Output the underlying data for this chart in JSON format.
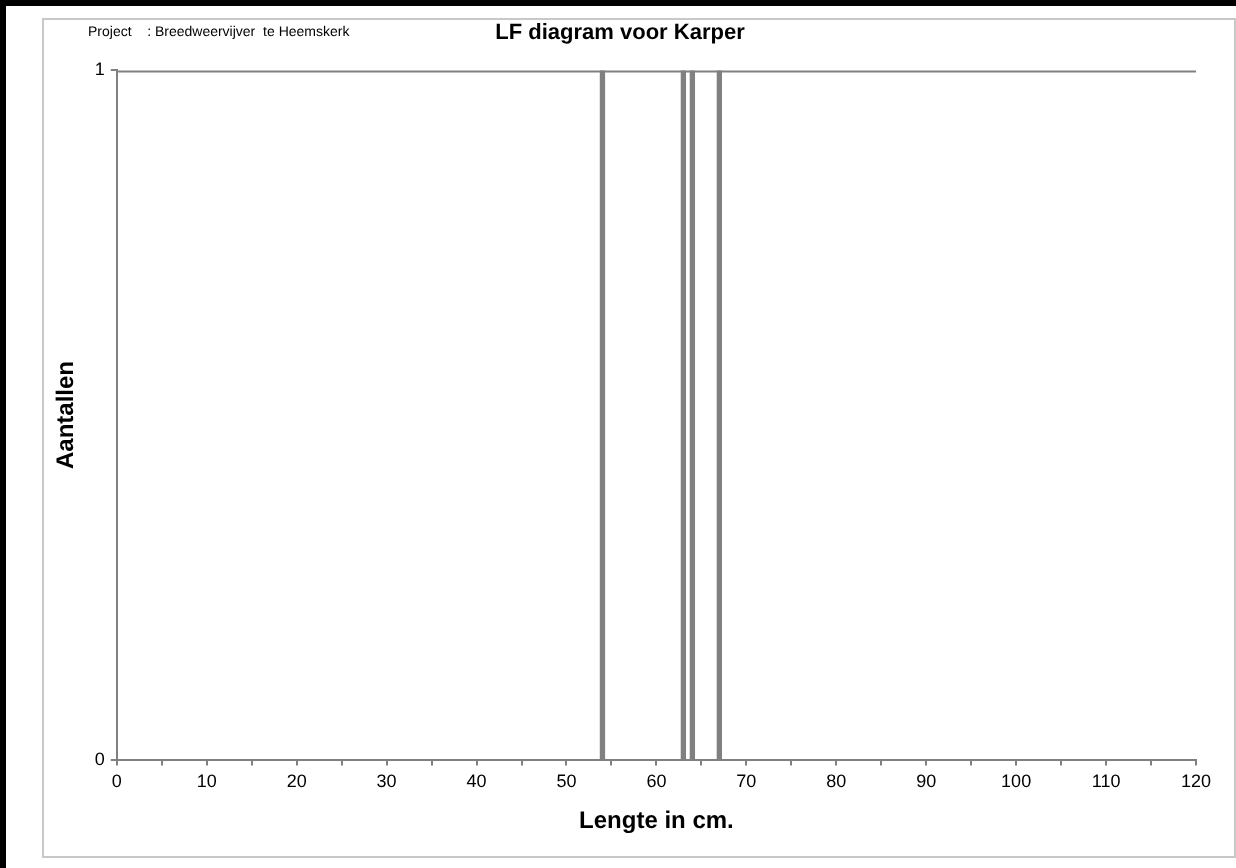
{
  "chart_data": {
    "type": "bar",
    "title": "LF diagram voor Karper",
    "xlabel": "Lengte in cm.",
    "ylabel": "Aantallen",
    "annotations": [
      "Project    : Breedweervijver  te Heemskerk"
    ],
    "x": [
      54,
      63,
      64,
      67
    ],
    "values": [
      1,
      1,
      1,
      1
    ],
    "color": "#808080",
    "xlim": [
      0,
      120
    ],
    "xticks": [
      0,
      {
        "value": 5,
        "label": null
      },
      10,
      {
        "value": 15,
        "label": null
      },
      20,
      {
        "value": 25,
        "label": null
      },
      30,
      {
        "value": 35,
        "label": null
      },
      40,
      {
        "value": 45,
        "label": null
      },
      50,
      {
        "value": 55,
        "label": null
      },
      60,
      {
        "value": 65,
        "label": null
      },
      70,
      {
        "value": 75,
        "label": null
      },
      80,
      {
        "value": 85,
        "label": null
      },
      90,
      {
        "value": 95,
        "label": null
      },
      100,
      {
        "value": 105,
        "label": null
      },
      110,
      {
        "value": 115,
        "label": null
      },
      120
    ],
    "ylim": [
      0,
      1
    ],
    "yticks": [
      0,
      1
    ],
    "legend": false
  }
}
